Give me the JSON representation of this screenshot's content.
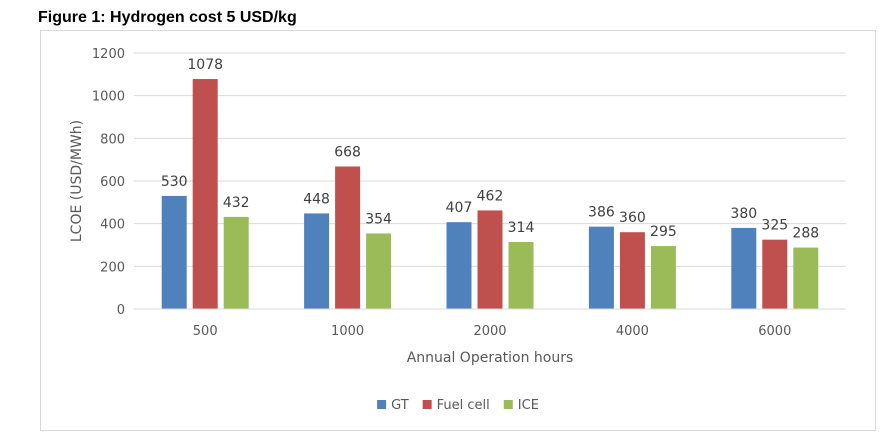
{
  "figure": {
    "title": "Figure 1: Hydrogen cost 5 USD/kg"
  },
  "chart_data": {
    "type": "bar",
    "title": "",
    "xlabel": "Annual Operation hours",
    "ylabel": "LCOE (USD/MWh)",
    "ylim": [
      0,
      1200
    ],
    "yticks": [
      0,
      200,
      400,
      600,
      800,
      1000,
      1200
    ],
    "grid": true,
    "legend_position": "bottom",
    "categories": [
      "500",
      "1000",
      "2000",
      "4000",
      "6000"
    ],
    "series": [
      {
        "name": "GT",
        "color": "#4f81bd",
        "values": [
          530,
          448,
          407,
          386,
          380
        ]
      },
      {
        "name": "Fuel cell",
        "color": "#c0504d",
        "values": [
          1078,
          668,
          462,
          360,
          325
        ]
      },
      {
        "name": "ICE",
        "color": "#9bbb59",
        "values": [
          432,
          354,
          314,
          295,
          288
        ]
      }
    ]
  }
}
